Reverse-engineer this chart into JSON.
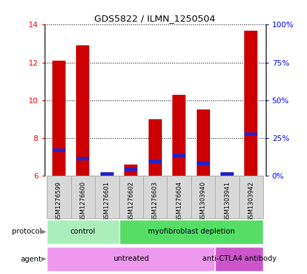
{
  "title": "GDS5822 / ILMN_1250504",
  "samples": [
    "GSM1276599",
    "GSM1276600",
    "GSM1276601",
    "GSM1276602",
    "GSM1276603",
    "GSM1276604",
    "GSM1303940",
    "GSM1303941",
    "GSM1303942"
  ],
  "count_values": [
    12.1,
    12.9,
    6.1,
    6.6,
    9.0,
    10.3,
    9.5,
    6.1,
    13.7
  ],
  "percentile_values": [
    7.35,
    6.9,
    6.1,
    6.35,
    6.75,
    7.05,
    6.65,
    6.1,
    8.2
  ],
  "ylim": [
    6,
    14
  ],
  "yticks_left": [
    6,
    8,
    10,
    12,
    14
  ],
  "yticks_right_pct": [
    0,
    25,
    50,
    75,
    100
  ],
  "bar_color": "#cc0000",
  "percentile_color": "#2222cc",
  "protocol_groups": [
    {
      "label": "control",
      "start": 0,
      "end": 3,
      "color": "#aaeebb"
    },
    {
      "label": "myofibroblast depletion",
      "start": 3,
      "end": 9,
      "color": "#55dd66"
    }
  ],
  "agent_groups": [
    {
      "label": "untreated",
      "start": 0,
      "end": 7,
      "color": "#ee99ee"
    },
    {
      "label": "anti-CTLA4 antibody",
      "start": 7,
      "end": 9,
      "color": "#cc55cc"
    }
  ],
  "bar_width": 0.55,
  "grid_color": "black",
  "cell_bg": "#d8d8d8",
  "cell_edge": "#aaaaaa"
}
